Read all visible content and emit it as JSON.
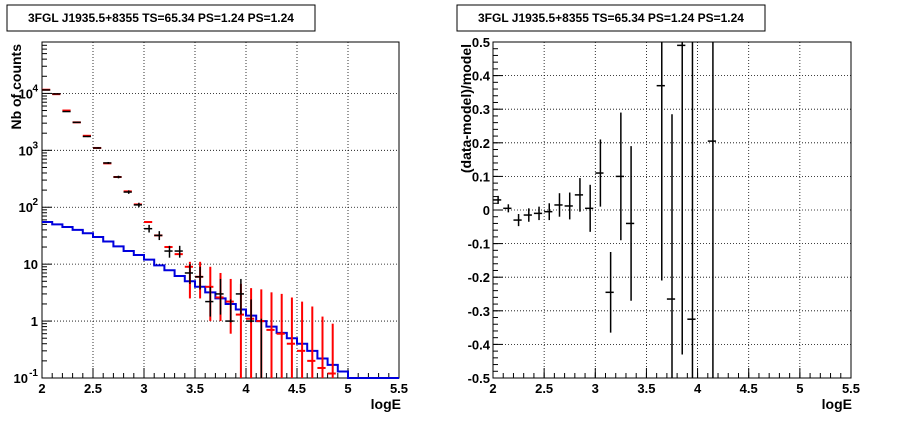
{
  "chart_data": [
    {
      "type": "histogram",
      "title": "3FGL J1935.5+8355 TS=65.34 PS=1.24 PS=1.24",
      "xlabel": "logE",
      "ylabel": "Nb of counts",
      "xlim": [
        2,
        5.5
      ],
      "ylim": [
        0.1,
        80000
      ],
      "y_scale": "log",
      "grid": true,
      "x_ticks": [
        "2",
        "2.5",
        "3",
        "3.5",
        "4",
        "4.5",
        "5",
        "5.5"
      ],
      "y_ticks": [
        {
          "value": 0.1,
          "label": "10",
          "exp": "-1"
        },
        {
          "value": 1,
          "label": "1",
          "exp": ""
        },
        {
          "value": 10,
          "label": "10",
          "exp": ""
        },
        {
          "value": 100,
          "label": "10",
          "exp": "2"
        },
        {
          "value": 1000,
          "label": "10",
          "exp": "3"
        },
        {
          "value": 10000,
          "label": "10",
          "exp": "4"
        }
      ],
      "bin_width": 0.1,
      "series": [
        {
          "role": "data",
          "color": "#000000",
          "x": [
            2.05,
            2.15,
            2.25,
            2.35,
            2.45,
            2.55,
            2.65,
            2.75,
            2.85,
            2.95,
            3.05,
            3.15,
            3.25,
            3.35,
            3.45,
            3.55,
            3.65,
            3.75,
            3.85,
            3.95,
            4.05,
            4.15
          ],
          "y": [
            11500,
            9800,
            4800,
            3100,
            1750,
            1100,
            600,
            340,
            185,
            110,
            42,
            32,
            17,
            17,
            7,
            6,
            2.2,
            3,
            1,
            3,
            1,
            0
          ],
          "err_low": [
            11390,
            9700,
            4730,
            3045,
            1708,
            1067,
            576,
            322,
            172,
            100,
            36,
            26.5,
            13,
            13,
            4.5,
            3.6,
            1.2,
            1.3,
            0.95,
            1.3,
            0.95,
            0
          ],
          "err_high": [
            11610,
            9900,
            4870,
            3155,
            1792,
            1133,
            624,
            358,
            198,
            120,
            49,
            38,
            21,
            21,
            10,
            9,
            4,
            5.5,
            2.4,
            5.5,
            2.4,
            1.1
          ]
        },
        {
          "role": "model-total",
          "color": "#ff0000",
          "x": [
            2.05,
            2.15,
            2.25,
            2.35,
            2.45,
            2.55,
            2.65,
            2.75,
            2.85,
            2.95,
            3.05,
            3.15,
            3.25,
            3.35,
            3.45,
            3.55,
            3.65,
            3.75,
            3.85,
            3.95,
            4.05,
            4.15,
            4.25,
            4.35,
            4.45,
            4.55,
            4.65,
            4.75,
            4.85
          ],
          "y": [
            11600,
            9700,
            5000,
            3100,
            1800,
            1100,
            590,
            340,
            190,
            112,
            55,
            32,
            20,
            15,
            9,
            6,
            4,
            2.6,
            2.2,
            1.3,
            1.1,
            1,
            0.7,
            0.6,
            0.4,
            0.3,
            0.2,
            0.15,
            0.12
          ],
          "err_low": [
            0,
            0,
            0,
            0,
            0,
            0,
            0,
            0,
            0,
            0,
            0,
            0,
            0,
            0,
            2.5,
            2.5,
            1,
            1,
            0.6,
            0.1,
            0.1,
            0.1,
            0.1,
            0.1,
            0.1,
            0.1,
            0.1,
            0.1,
            0.1
          ],
          "err_high": [
            0,
            0,
            0,
            0,
            0,
            0,
            0,
            0,
            0,
            0,
            0,
            0,
            0,
            0,
            11,
            11,
            9,
            7,
            5.5,
            4.5,
            3.8,
            3.6,
            3.2,
            3,
            2.6,
            2.2,
            1.8,
            1.2,
            0.9
          ]
        },
        {
          "role": "model-source",
          "color": "#0000dd",
          "edges": [
            2.0,
            2.1,
            2.2,
            2.3,
            2.4,
            2.5,
            2.6,
            2.7,
            2.8,
            2.9,
            3.0,
            3.1,
            3.2,
            3.3,
            3.4,
            3.5,
            3.6,
            3.7,
            3.8,
            3.9,
            4.0,
            4.1,
            4.2,
            4.3,
            4.4,
            4.5,
            4.6,
            4.7,
            4.8,
            4.9,
            5.0,
            5.1,
            5.2,
            5.3,
            5.4,
            5.5
          ],
          "y": [
            55,
            50,
            45,
            40,
            35,
            30,
            25,
            20.5,
            17,
            14.5,
            12,
            9.5,
            7.8,
            6.2,
            5,
            4,
            3.2,
            2.5,
            2,
            1.6,
            1.25,
            1,
            0.8,
            0.62,
            0.5,
            0.4,
            0.3,
            0.22,
            0.17,
            0.13,
            0.1,
            0.1,
            0.1,
            0.1,
            0.1
          ]
        }
      ]
    },
    {
      "type": "scatter-errorbar",
      "title": "3FGL J1935.5+8355 TS=65.34 PS=1.24 PS=1.24",
      "xlabel": "logE",
      "ylabel": "(data-model)/model",
      "xlim": [
        2,
        5.5
      ],
      "ylim": [
        -0.5,
        0.5
      ],
      "grid": true,
      "x_ticks": [
        "2",
        "2.5",
        "3",
        "3.5",
        "4",
        "4.5",
        "5",
        "5.5"
      ],
      "y_ticks": [
        "-0.5",
        "-0.4",
        "-0.3",
        "-0.2",
        "-0.1",
        "0",
        "0.1",
        "0.2",
        "0.3",
        "0.4",
        "0.5"
      ],
      "bin_width": 0.1,
      "series": [
        {
          "role": "residuals",
          "color": "#000000",
          "x": [
            2.05,
            2.15,
            2.25,
            2.35,
            2.45,
            2.55,
            2.65,
            2.75,
            2.85,
            2.95,
            3.05,
            3.15,
            3.25,
            3.35,
            3.65,
            3.75,
            3.85,
            3.95,
            4.15
          ],
          "y": [
            0.03,
            0.005,
            -0.03,
            -0.015,
            -0.01,
            -0.005,
            0.015,
            0.012,
            0.045,
            0.005,
            0.11,
            -0.245,
            0.1,
            -0.04,
            0.37,
            -0.265,
            0.49,
            -0.325,
            0.205
          ],
          "err": [
            0.012,
            0.012,
            0.018,
            0.02,
            0.02,
            0.025,
            0.035,
            0.04,
            0.05,
            0.07,
            0.1,
            0.12,
            0.19,
            0.23,
            0.58,
            0.55,
            0.92,
            0.84,
            0.8
          ]
        }
      ]
    }
  ]
}
